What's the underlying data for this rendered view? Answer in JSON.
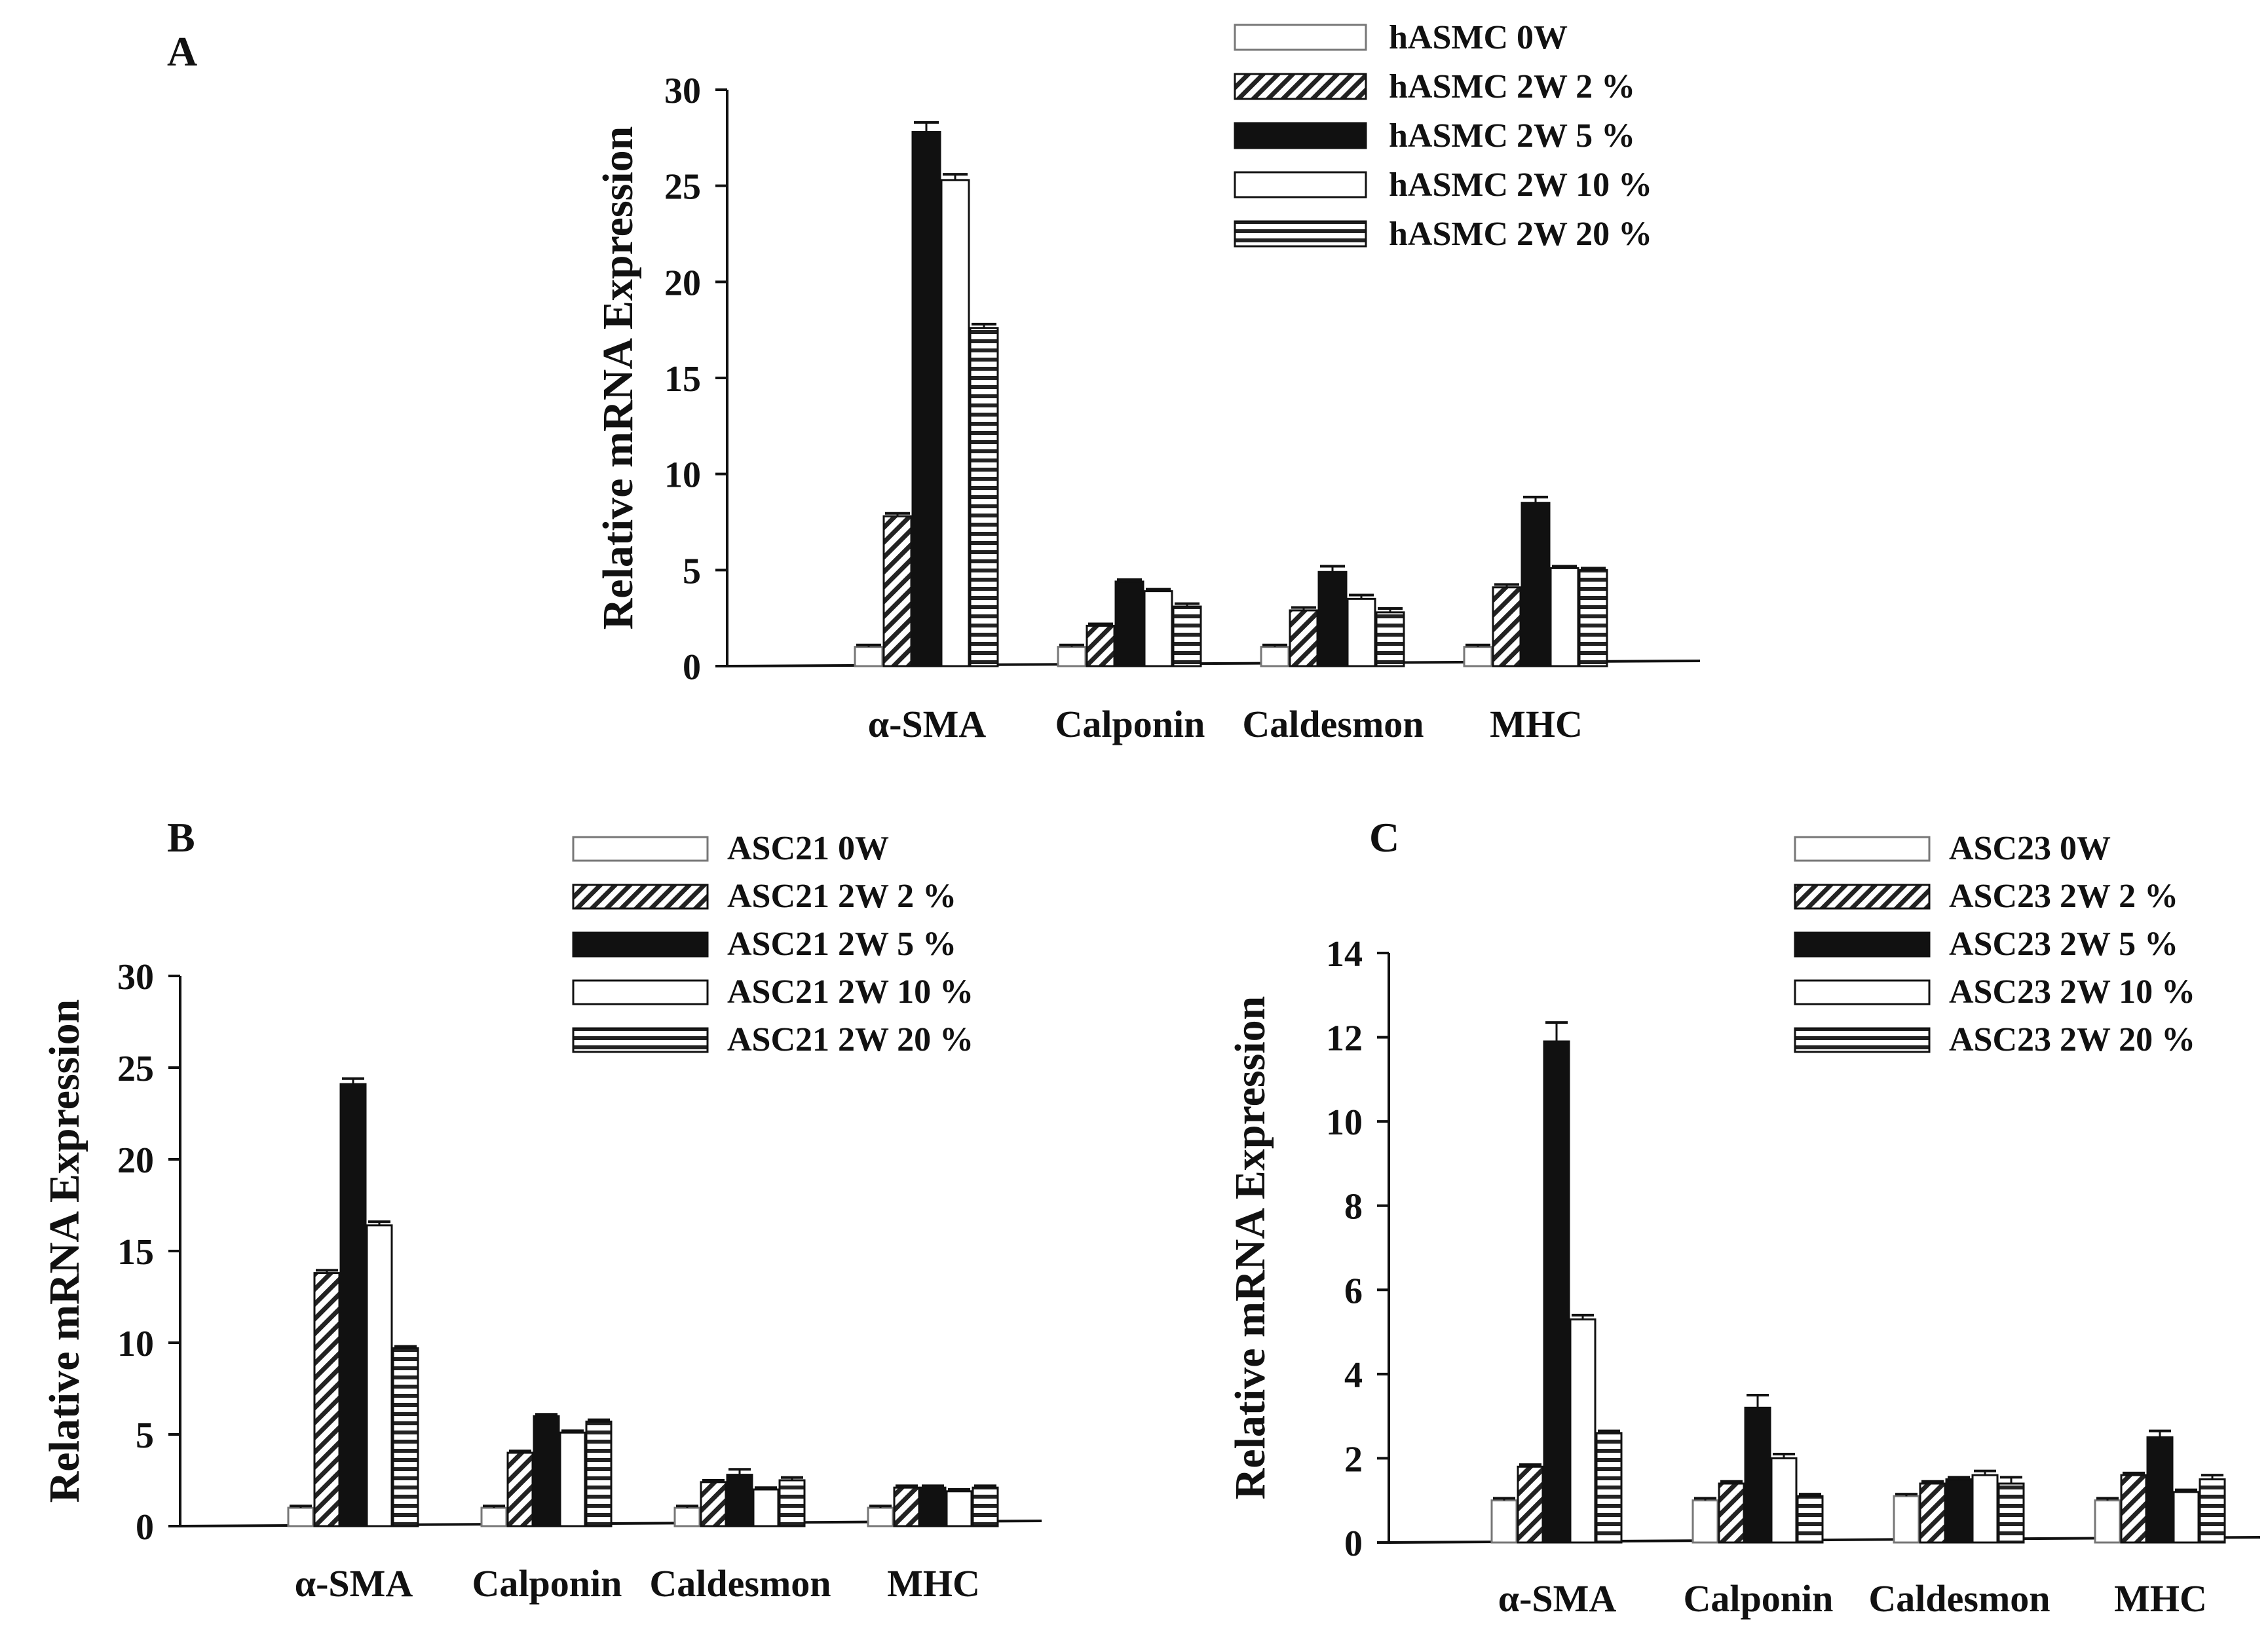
{
  "figure": {
    "style_colors": {
      "black": "#111111",
      "white": "#ffffff",
      "grey": "#444444"
    }
  },
  "chart_data": [
    {
      "panel": "A",
      "type": "bar",
      "ylabel": "Relative mRNA Expression",
      "xlabel": "",
      "ylim": [
        0,
        30
      ],
      "yticks": [
        0,
        5,
        10,
        15,
        20,
        25,
        30
      ],
      "categories": [
        "α-SMA",
        "Calponin",
        "Caldesmon",
        "MHC"
      ],
      "legend_position": "top-right",
      "series": [
        {
          "name": "hASMC  0W",
          "fill": "white-thin",
          "values": [
            1,
            1,
            1,
            1
          ],
          "errors": [
            0.1,
            0.1,
            0.1,
            0.1
          ]
        },
        {
          "name": "hASMC 2W 2 %",
          "fill": "diagonal",
          "values": [
            7.8,
            2.1,
            2.9,
            4.1
          ],
          "errors": [
            0.15,
            0.1,
            0.15,
            0.15
          ]
        },
        {
          "name": "hASMC 2W 5 %",
          "fill": "black",
          "values": [
            27.8,
            4.4,
            4.9,
            8.5
          ],
          "errors": [
            0.5,
            0.1,
            0.3,
            0.3
          ]
        },
        {
          "name": "hASMC 2W 10 %",
          "fill": "white",
          "values": [
            25.3,
            3.9,
            3.5,
            5.1
          ],
          "errors": [
            0.3,
            0.1,
            0.2,
            0.1
          ]
        },
        {
          "name": "hASMC 2W 20 %",
          "fill": "horizontal",
          "values": [
            17.6,
            3.1,
            2.8,
            5.0
          ],
          "errors": [
            0.2,
            0.15,
            0.2,
            0.1
          ]
        }
      ]
    },
    {
      "panel": "B",
      "type": "bar",
      "ylabel": "Relative mRNA Expression",
      "xlabel": "",
      "ylim": [
        0,
        30
      ],
      "yticks": [
        0,
        5,
        10,
        15,
        20,
        25,
        30
      ],
      "categories": [
        "α-SMA",
        "Calponin",
        "Caldesmon",
        "MHC"
      ],
      "legend_position": "top-right",
      "series": [
        {
          "name": "ASC21  0W",
          "fill": "white-thin",
          "values": [
            1,
            1,
            1,
            1
          ],
          "errors": [
            0.1,
            0.1,
            0.1,
            0.1
          ]
        },
        {
          "name": "ASC21 2W  2 %",
          "fill": "diagonal",
          "values": [
            13.8,
            4.0,
            2.4,
            2.1
          ],
          "errors": [
            0.15,
            0.1,
            0.1,
            0.1
          ]
        },
        {
          "name": "ASC21 2W  5 %",
          "fill": "black",
          "values": [
            24.1,
            6.0,
            2.8,
            2.1
          ],
          "errors": [
            0.3,
            0.1,
            0.3,
            0.1
          ]
        },
        {
          "name": "ASC21 2W 10 %",
          "fill": "white",
          "values": [
            16.4,
            5.1,
            2.0,
            1.9
          ],
          "errors": [
            0.2,
            0.1,
            0.1,
            0.1
          ]
        },
        {
          "name": "ASC21 2W 20 %",
          "fill": "horizontal",
          "values": [
            9.7,
            5.7,
            2.5,
            2.1
          ],
          "errors": [
            0.1,
            0.1,
            0.15,
            0.1
          ]
        }
      ]
    },
    {
      "panel": "C",
      "type": "bar",
      "ylabel": "Relative mRNA Expression",
      "xlabel": "",
      "ylim": [
        0,
        14
      ],
      "yticks": [
        0,
        2,
        4,
        6,
        8,
        10,
        12,
        14
      ],
      "categories": [
        "α-SMA",
        "Calponin",
        "Caldesmon",
        "MHC"
      ],
      "legend_position": "top-right",
      "series": [
        {
          "name": "ASC23  0W",
          "fill": "white-thin",
          "values": [
            1,
            1,
            1.1,
            1
          ],
          "errors": [
            0.05,
            0.05,
            0.05,
            0.05
          ]
        },
        {
          "name": "ASC23 2W  2 %",
          "fill": "diagonal",
          "values": [
            1.8,
            1.4,
            1.4,
            1.6
          ],
          "errors": [
            0.05,
            0.05,
            0.05,
            0.05
          ]
        },
        {
          "name": "ASC23 2W  5 %",
          "fill": "black",
          "values": [
            11.9,
            3.2,
            1.5,
            2.5
          ],
          "errors": [
            0.45,
            0.3,
            0.05,
            0.15
          ]
        },
        {
          "name": "ASC23 2W 10 %",
          "fill": "white",
          "values": [
            5.3,
            2.0,
            1.6,
            1.2
          ],
          "errors": [
            0.1,
            0.1,
            0.1,
            0.05
          ]
        },
        {
          "name": "ASC23 2W 20 %",
          "fill": "horizontal",
          "values": [
            2.6,
            1.1,
            1.4,
            1.5
          ],
          "errors": [
            0.05,
            0.05,
            0.15,
            0.1
          ]
        }
      ]
    }
  ]
}
